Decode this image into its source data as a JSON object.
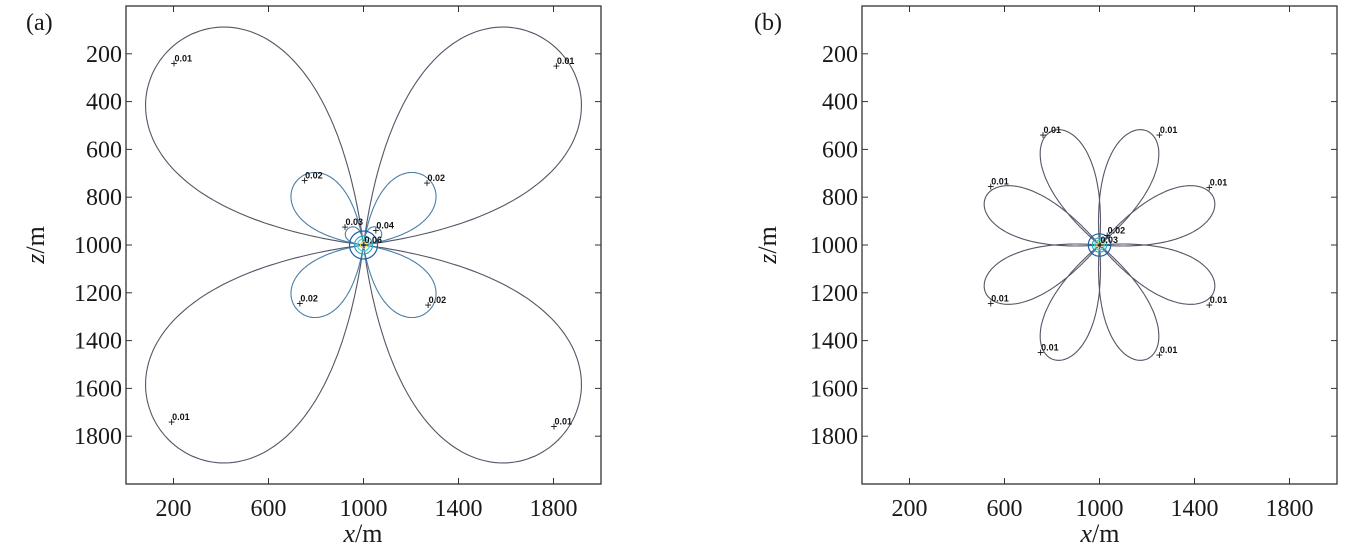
{
  "chart_data": [
    {
      "type": "contour",
      "panel_label": "(a)",
      "xlabel_var": "x",
      "xlabel_unit": "/m",
      "ylabel_var": "z",
      "ylabel_unit": "/m",
      "xlim": [
        0,
        2000
      ],
      "ylim": [
        2000,
        0
      ],
      "x_ticks": [
        200,
        600,
        1000,
        1400,
        1800
      ],
      "y_ticks": [
        200,
        400,
        600,
        800,
        1000,
        1200,
        1400,
        1600,
        1800
      ],
      "center": [
        1000,
        1000
      ],
      "outer_color": "#555566",
      "inner_color": "#4a7fa8",
      "lobes": [
        {
          "level": "0.01",
          "angles_deg": [
            45,
            135,
            225,
            315
          ],
          "length": 1160,
          "width": 0.36,
          "label_points": [
            [
              200,
              240
            ],
            [
              1810,
              250
            ],
            [
              190,
              1740
            ],
            [
              1800,
              1760
            ]
          ]
        },
        {
          "level": "0.02",
          "angles_deg": [
            45,
            135,
            225,
            315
          ],
          "length": 390,
          "width": 0.34,
          "label_points": [
            [
              750,
              730
            ],
            [
              1265,
              740
            ],
            [
              730,
              1245
            ],
            [
              1270,
              1250
            ]
          ]
        },
        {
          "level": "0.03",
          "angles_deg": [
            135
          ],
          "length": 95,
          "width": 0.4,
          "label_points": [
            [
              920,
              925
            ]
          ]
        },
        {
          "level": "0.04",
          "angles_deg": [
            45
          ],
          "length": 95,
          "width": 0.4,
          "label_points": [
            [
              1050,
              940
            ]
          ]
        },
        {
          "level": "0.06",
          "angles_deg": [],
          "length": 0,
          "width": 0,
          "label_points": [
            [
              1000,
              1000
            ]
          ]
        }
      ]
    },
    {
      "type": "contour",
      "panel_label": "(b)",
      "xlabel_var": "x",
      "xlabel_unit": "/m",
      "ylabel_var": "z",
      "ylabel_unit": "/m",
      "xlim": [
        0,
        2000
      ],
      "ylim": [
        2000,
        0
      ],
      "x_ticks": [
        200,
        600,
        1000,
        1400,
        1800
      ],
      "y_ticks": [
        200,
        400,
        600,
        800,
        1000,
        1200,
        1400,
        1600,
        1800
      ],
      "center": [
        1000,
        1000
      ],
      "outer_color": "#555566",
      "inner_color": "#4a7fa8",
      "lobes": [
        {
          "level": "0.01",
          "angles_deg": [
            22.5,
            67.5,
            112.5,
            157.5,
            202.5,
            247.5,
            292.5,
            337.5
          ],
          "length": 520,
          "width": 0.24,
          "label_points": [
            [
              760,
              540
            ],
            [
              1250,
              540
            ],
            [
              540,
              755
            ],
            [
              1460,
              760
            ],
            [
              540,
              1245
            ],
            [
              1460,
              1250
            ],
            [
              750,
              1450
            ],
            [
              1250,
              1460
            ]
          ]
        },
        {
          "level": "0.02",
          "angles_deg": [],
          "length": 0,
          "width": 0,
          "label_points": [
            [
              1030,
              960
            ]
          ]
        },
        {
          "level": "0.03",
          "angles_deg": [],
          "length": 0,
          "width": 0,
          "label_points": [
            [
              1000,
              1000
            ]
          ]
        }
      ]
    }
  ]
}
